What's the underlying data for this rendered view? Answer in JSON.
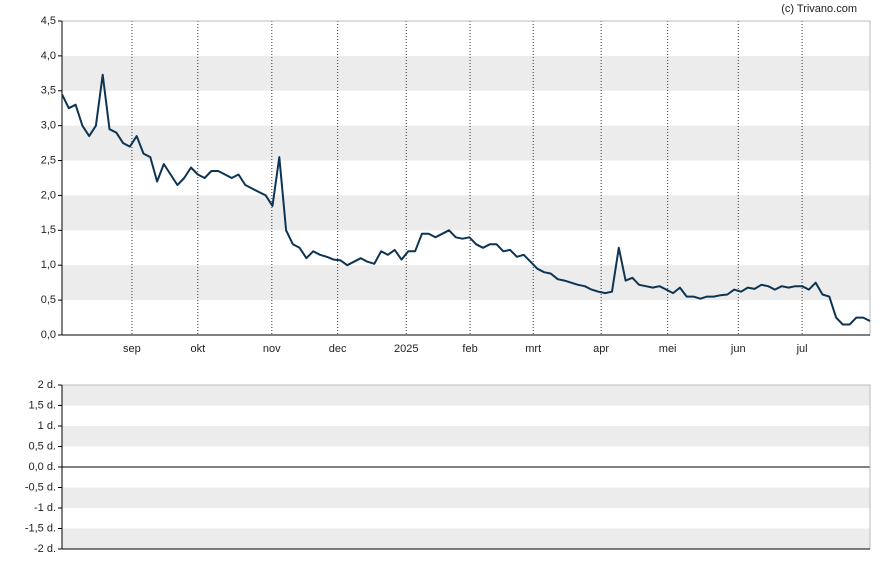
{
  "source": "(c) Trivano.com",
  "chart_data": [
    {
      "type": "line",
      "color": "#0d3553",
      "values": [
        3.45,
        3.25,
        3.3,
        3.0,
        2.85,
        3.0,
        3.73,
        2.95,
        2.9,
        2.75,
        2.7,
        2.85,
        2.6,
        2.55,
        2.2,
        2.45,
        2.3,
        2.15,
        2.25,
        2.4,
        2.3,
        2.25,
        2.35,
        2.35,
        2.3,
        2.25,
        2.3,
        2.15,
        2.1,
        2.05,
        2.0,
        1.85,
        2.55,
        1.5,
        1.3,
        1.25,
        1.1,
        1.2,
        1.15,
        1.12,
        1.08,
        1.07,
        1.0,
        1.05,
        1.1,
        1.05,
        1.02,
        1.2,
        1.15,
        1.22,
        1.08,
        1.2,
        1.2,
        1.45,
        1.45,
        1.4,
        1.45,
        1.5,
        1.4,
        1.38,
        1.4,
        1.3,
        1.25,
        1.3,
        1.3,
        1.2,
        1.22,
        1.12,
        1.15,
        1.05,
        0.95,
        0.9,
        0.88,
        0.8,
        0.78,
        0.75,
        0.72,
        0.7,
        0.65,
        0.62,
        0.6,
        0.62,
        1.25,
        0.78,
        0.82,
        0.72,
        0.7,
        0.68,
        0.7,
        0.65,
        0.6,
        0.68,
        0.55,
        0.55,
        0.52,
        0.55,
        0.55,
        0.57,
        0.58,
        0.65,
        0.62,
        0.68,
        0.66,
        0.72,
        0.7,
        0.65,
        0.7,
        0.68,
        0.7,
        0.7,
        0.65,
        0.75,
        0.58,
        0.55,
        0.25,
        0.15,
        0.15,
        0.25,
        0.25,
        0.2
      ],
      "xlim": [
        0,
        119
      ],
      "xticks": [
        {
          "value": 10.3,
          "label": "sep"
        },
        {
          "value": 20.0,
          "label": "okt"
        },
        {
          "value": 30.9,
          "label": "nov"
        },
        {
          "value": 40.6,
          "label": "dec"
        },
        {
          "value": 50.7,
          "label": "2025"
        },
        {
          "value": 60.1,
          "label": "feb"
        },
        {
          "value": 69.4,
          "label": "mrt"
        },
        {
          "value": 79.4,
          "label": "apr"
        },
        {
          "value": 89.2,
          "label": "mei"
        },
        {
          "value": 99.6,
          "label": "jun"
        },
        {
          "value": 109.0,
          "label": "jul"
        }
      ],
      "ylim": [
        0,
        4.5
      ],
      "yticks": [
        {
          "value": 0,
          "label": "0,0"
        },
        {
          "value": 0.5,
          "label": "0,5"
        },
        {
          "value": 1,
          "label": "1,0"
        },
        {
          "value": 1.5,
          "label": "1,5"
        },
        {
          "value": 2,
          "label": "2,0"
        },
        {
          "value": 2.5,
          "label": "2,5"
        },
        {
          "value": 3,
          "label": "3,0"
        },
        {
          "value": 3.5,
          "label": "3,5"
        },
        {
          "value": 4,
          "label": "4,0"
        },
        {
          "value": 4.5,
          "label": "4,5"
        }
      ]
    },
    {
      "type": "bar",
      "values": [],
      "ylim": [
        -2,
        2
      ],
      "yticks": [
        {
          "value": -2,
          "label": "-2 d."
        },
        {
          "value": -1.5,
          "label": "-1,5 d."
        },
        {
          "value": -1,
          "label": "-1 d."
        },
        {
          "value": -0.5,
          "label": "-0,5 d."
        },
        {
          "value": 0,
          "label": "0,0 d."
        },
        {
          "value": 0.5,
          "label": "0,5 d."
        },
        {
          "value": 1,
          "label": "1 d."
        },
        {
          "value": 1.5,
          "label": "1,5 d."
        },
        {
          "value": 2,
          "label": "2 d."
        }
      ]
    }
  ]
}
